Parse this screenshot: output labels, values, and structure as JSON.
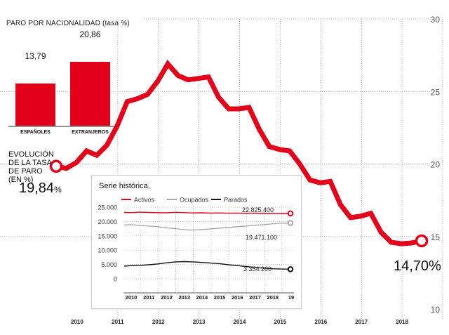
{
  "chart_data": [
    {
      "type": "line",
      "title": "EVOLUCIÓN DE LA TASA DE PARO (EN %)",
      "ylim": [
        10,
        30
      ],
      "yticks": [
        30,
        25,
        20,
        15,
        10
      ],
      "xticks": [
        "2010",
        "2011",
        "2012",
        "2013",
        "2014",
        "2015",
        "2016",
        "2017",
        "2018"
      ],
      "x_range": [
        2009.5,
        2018.7
      ],
      "series": [
        {
          "color": "#e3001b",
          "x": [
            2009.5,
            2009.75,
            2010.0,
            2010.25,
            2010.5,
            2010.75,
            2011.0,
            2011.25,
            2011.5,
            2011.75,
            2012.0,
            2012.25,
            2012.5,
            2012.75,
            2013.0,
            2013.25,
            2013.5,
            2013.75,
            2014.0,
            2014.25,
            2014.5,
            2014.75,
            2015.0,
            2015.25,
            2015.5,
            2015.75,
            2016.0,
            2016.25,
            2016.5,
            2016.75,
            2017.0,
            2017.25,
            2017.5,
            2017.75,
            2018.0,
            2018.25,
            2018.5
          ],
          "values": [
            19.84,
            19.7,
            20.1,
            20.9,
            20.6,
            21.3,
            22.6,
            24.3,
            24.5,
            24.8,
            25.7,
            26.9,
            26.1,
            25.8,
            25.9,
            26.0,
            24.6,
            23.8,
            23.8,
            23.9,
            22.4,
            21.2,
            21.0,
            20.9,
            20.0,
            18.9,
            18.7,
            18.8,
            17.2,
            16.3,
            16.4,
            16.6,
            15.3,
            14.6,
            14.5,
            14.55,
            14.7
          ]
        }
      ],
      "start_value": "19,84",
      "start_value_unit": "%",
      "end_value": "14,70%"
    },
    {
      "type": "bar",
      "title": "PARO POR NACIONALIDAD (tasa %)",
      "categories": [
        "ESPAÑOLES",
        "EXTRANJEROS"
      ],
      "values": [
        13.79,
        20.86
      ],
      "value_labels": [
        "13,79",
        "20,86"
      ],
      "color": "#e3001b"
    },
    {
      "type": "line",
      "title": "Serie histórica.",
      "ylim": [
        0,
        25000
      ],
      "yticks": [
        "25.000",
        "20.000",
        "15.000",
        "10.000",
        "5.000",
        "0"
      ],
      "xticks": [
        "2010",
        "2011",
        "2012",
        "2013",
        "2014",
        "2015",
        "2016",
        "2017",
        "2018",
        "19"
      ],
      "x_range": [
        2009.6,
        2019.1
      ],
      "series": [
        {
          "name": "Activos",
          "color": "#e3001b",
          "x": [
            2009.6,
            2010.0,
            2010.5,
            2011.0,
            2011.5,
            2012.0,
            2012.5,
            2013.0,
            2013.5,
            2014.0,
            2014.5,
            2015.0,
            2015.5,
            2016.0,
            2016.5,
            2017.0,
            2017.5,
            2018.0,
            2018.5,
            2019.0
          ],
          "values": [
            23150,
            23100,
            23250,
            23150,
            23100,
            23050,
            23200,
            23100,
            23000,
            23050,
            22950,
            23000,
            22900,
            22950,
            22850,
            22900,
            22800,
            22800,
            22850,
            22825.4
          ],
          "end_label": "22.825.400"
        },
        {
          "name": "Ocupados",
          "color": "#a8a8a8",
          "x": [
            2009.6,
            2010.0,
            2010.5,
            2011.0,
            2011.5,
            2012.0,
            2012.5,
            2013.0,
            2013.5,
            2014.0,
            2014.5,
            2015.0,
            2015.5,
            2016.0,
            2016.5,
            2017.0,
            2017.5,
            2018.0,
            2018.5,
            2019.0
          ],
          "values": [
            18800,
            18900,
            18600,
            18400,
            18200,
            17800,
            17500,
            17100,
            17000,
            17200,
            17400,
            17700,
            17900,
            18200,
            18400,
            18700,
            18900,
            19200,
            19400,
            19471.1
          ],
          "end_label": "19.471.100"
        },
        {
          "name": "Parados",
          "color": "#111111",
          "x": [
            2009.6,
            2010.0,
            2010.5,
            2011.0,
            2011.5,
            2012.0,
            2012.5,
            2013.0,
            2013.5,
            2014.0,
            2014.5,
            2015.0,
            2015.5,
            2016.0,
            2016.5,
            2017.0,
            2017.5,
            2018.0,
            2018.5,
            2019.0
          ],
          "values": [
            4400,
            4600,
            4700,
            4900,
            5200,
            5600,
            5900,
            6000,
            5900,
            5700,
            5500,
            5300,
            4900,
            4600,
            4300,
            4000,
            3700,
            3500,
            3400,
            3354.2
          ],
          "end_label": "3.354.200"
        }
      ]
    }
  ]
}
